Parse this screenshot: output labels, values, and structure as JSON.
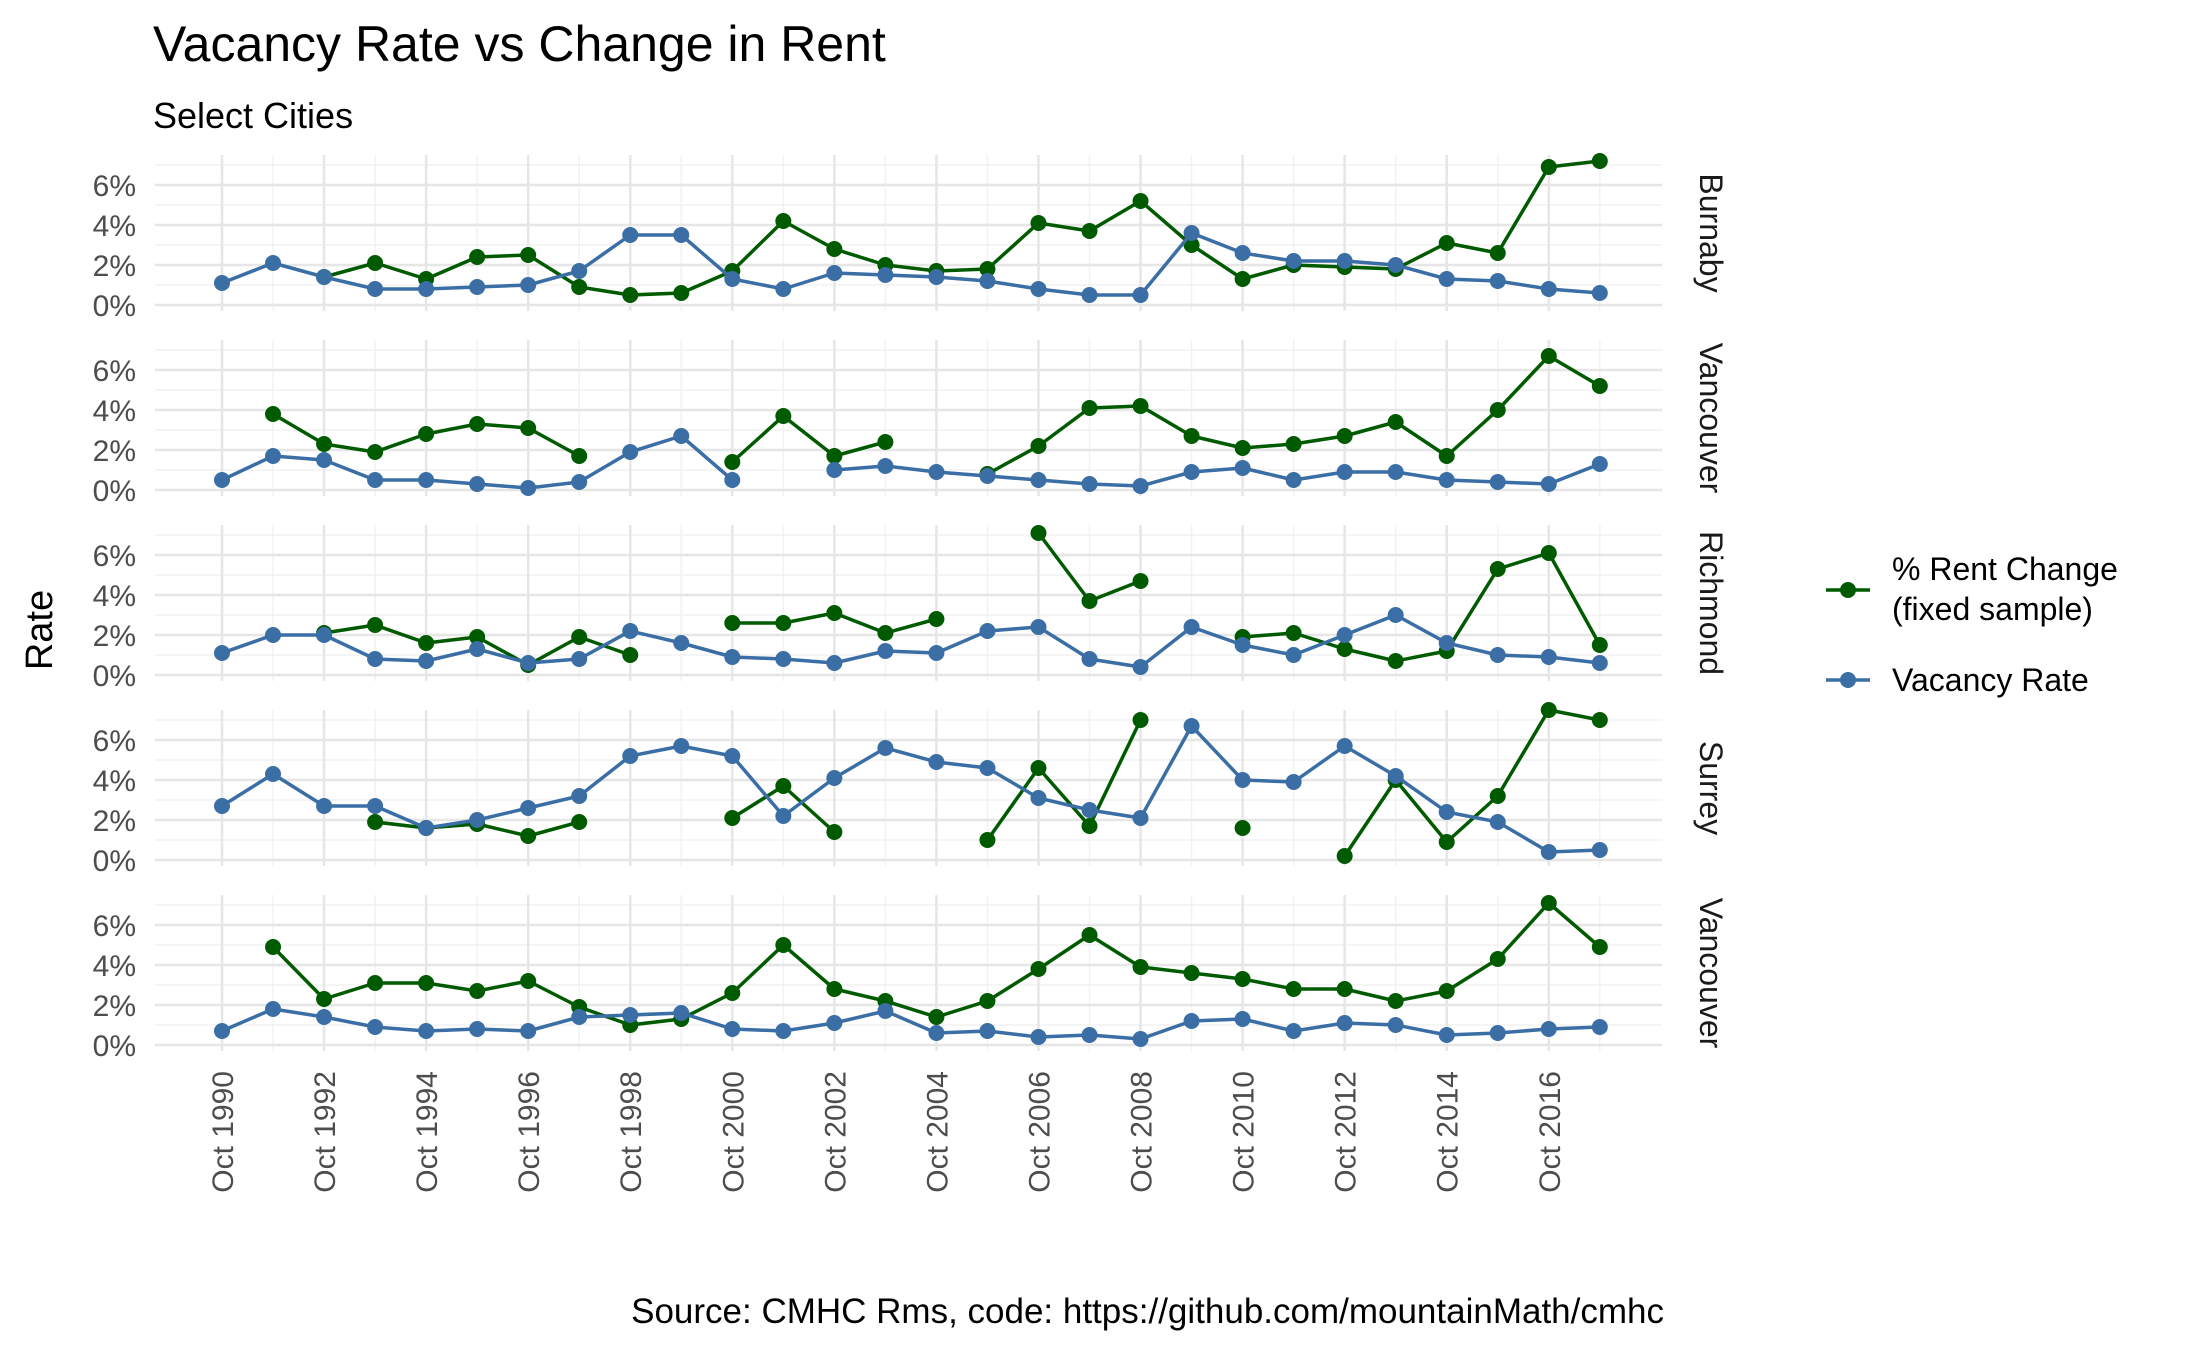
{
  "chart_data": {
    "type": "line",
    "title": "Vacancy Rate vs Change in Rent",
    "subtitle": "Select Cities",
    "ylabel": "Rate",
    "xlabel": "",
    "caption": "Source: CMHC Rms, code: https://github.com/mountainMath/cmhc",
    "ylim": [
      0,
      7.2
    ],
    "y_ticks": [
      "0%",
      "2%",
      "4%",
      "6%"
    ],
    "y_tick_values": [
      0,
      2,
      4,
      6
    ],
    "x": [
      "Oct 1990",
      "Oct 1991",
      "Oct 1992",
      "Oct 1993",
      "Oct 1994",
      "Oct 1995",
      "Oct 1996",
      "Oct 1997",
      "Oct 1998",
      "Oct 1999",
      "Oct 2000",
      "Oct 2001",
      "Oct 2002",
      "Oct 2003",
      "Oct 2004",
      "Oct 2005",
      "Oct 2006",
      "Oct 2007",
      "Oct 2008",
      "Oct 2009",
      "Oct 2010",
      "Oct 2011",
      "Oct 2012",
      "Oct 2013",
      "Oct 2014",
      "Oct 2015",
      "Oct 2016",
      "Oct 2017"
    ],
    "x_tick_labels": [
      "Oct 1990",
      "Oct 1992",
      "Oct 1994",
      "Oct 1996",
      "Oct 1998",
      "Oct 2000",
      "Oct 2002",
      "Oct 2004",
      "Oct 2006",
      "Oct 2008",
      "Oct 2010",
      "Oct 2012",
      "Oct 2014",
      "Oct 2016"
    ],
    "grid": true,
    "legend_position": "right",
    "colors": {
      "rent_change": "#005a00",
      "vacancy": "#3a6ea5",
      "grid_major": "#e6e6e6",
      "grid_minor": "#f2f2f2"
    },
    "legend": [
      {
        "label_line1": "% Rent Change",
        "label_line2": "(fixed sample)"
      },
      {
        "label_line1": "Vacancy Rate",
        "label_line2": ""
      }
    ],
    "panels": [
      {
        "strip": "Burnaby",
        "series": [
          {
            "name": "% Rent Change (fixed sample)",
            "values": [
              null,
              null,
              1.4,
              2.1,
              1.3,
              2.4,
              2.5,
              0.9,
              0.5,
              0.6,
              1.7,
              4.2,
              2.8,
              2.0,
              1.7,
              1.8,
              4.1,
              3.7,
              5.2,
              3.0,
              1.3,
              2.0,
              1.9,
              1.8,
              3.1,
              2.6,
              6.9,
              7.2
            ]
          },
          {
            "name": "Vacancy Rate",
            "values": [
              1.1,
              2.1,
              1.4,
              0.8,
              0.8,
              0.9,
              1.0,
              1.7,
              3.5,
              3.5,
              1.3,
              0.8,
              1.6,
              1.5,
              1.4,
              1.2,
              0.8,
              0.5,
              0.5,
              3.6,
              2.6,
              2.2,
              2.2,
              2.0,
              1.3,
              1.2,
              0.8,
              0.6
            ]
          }
        ]
      },
      {
        "strip": "Vancouver",
        "series": [
          {
            "name": "% Rent Change (fixed sample)",
            "values": [
              null,
              3.8,
              2.3,
              1.9,
              2.8,
              3.3,
              3.1,
              1.7,
              null,
              null,
              1.4,
              3.7,
              1.7,
              2.4,
              null,
              0.8,
              2.2,
              4.1,
              4.2,
              2.7,
              2.1,
              2.3,
              2.7,
              3.4,
              1.7,
              4.0,
              6.7,
              5.2
            ]
          },
          {
            "name": "Vacancy Rate",
            "values": [
              0.5,
              1.7,
              1.5,
              0.5,
              0.5,
              0.3,
              0.1,
              0.4,
              1.9,
              2.7,
              0.5,
              null,
              1.0,
              1.2,
              0.9,
              0.7,
              0.5,
              0.3,
              0.2,
              0.9,
              1.1,
              0.5,
              0.9,
              0.9,
              0.5,
              0.4,
              0.3,
              1.3
            ]
          }
        ]
      },
      {
        "strip": "Richmond",
        "series": [
          {
            "name": "% Rent Change (fixed sample)",
            "values": [
              null,
              null,
              2.1,
              2.5,
              1.6,
              1.9,
              0.5,
              1.9,
              1.0,
              null,
              2.6,
              2.6,
              3.1,
              2.1,
              2.8,
              null,
              7.1,
              3.7,
              4.7,
              null,
              1.9,
              2.1,
              1.3,
              0.7,
              1.2,
              5.3,
              6.1,
              1.5
            ]
          },
          {
            "name": "Vacancy Rate",
            "values": [
              1.1,
              2.0,
              2.0,
              0.8,
              0.7,
              1.3,
              0.6,
              0.8,
              2.2,
              1.6,
              0.9,
              0.8,
              0.6,
              1.2,
              1.1,
              2.2,
              2.4,
              0.8,
              0.4,
              2.4,
              1.5,
              1.0,
              2.0,
              3.0,
              1.6,
              1.0,
              0.9,
              0.6
            ]
          }
        ]
      },
      {
        "strip": "Surrey",
        "series": [
          {
            "name": "% Rent Change (fixed sample)",
            "values": [
              null,
              null,
              null,
              1.9,
              1.6,
              1.8,
              1.2,
              1.9,
              null,
              null,
              2.1,
              3.7,
              1.4,
              null,
              null,
              1.0,
              4.6,
              1.7,
              7.0,
              null,
              1.6,
              null,
              0.2,
              4.0,
              0.9,
              3.2,
              7.5,
              7.0
            ]
          },
          {
            "name": "Vacancy Rate",
            "values": [
              2.7,
              4.3,
              2.7,
              2.7,
              1.6,
              2.0,
              2.6,
              3.2,
              5.2,
              5.7,
              5.2,
              2.2,
              4.1,
              5.6,
              4.9,
              4.6,
              3.1,
              2.5,
              2.1,
              6.7,
              4.0,
              3.9,
              5.7,
              4.2,
              2.4,
              1.9,
              0.4,
              0.5
            ]
          }
        ]
      },
      {
        "strip": "Vancouver",
        "series": [
          {
            "name": "% Rent Change (fixed sample)",
            "values": [
              null,
              4.9,
              2.3,
              3.1,
              3.1,
              2.7,
              3.2,
              1.9,
              1.0,
              1.3,
              2.6,
              5.0,
              2.8,
              2.2,
              1.4,
              2.2,
              3.8,
              5.5,
              3.9,
              3.6,
              3.3,
              2.8,
              2.8,
              2.2,
              2.7,
              4.3,
              7.1,
              4.9
            ]
          },
          {
            "name": "Vacancy Rate",
            "values": [
              0.7,
              1.8,
              1.4,
              0.9,
              0.7,
              0.8,
              0.7,
              1.4,
              1.5,
              1.6,
              0.8,
              0.7,
              1.1,
              1.7,
              0.6,
              0.7,
              0.4,
              0.5,
              0.3,
              1.2,
              1.3,
              0.7,
              1.1,
              1.0,
              0.5,
              0.6,
              0.8,
              0.9
            ]
          }
        ]
      }
    ]
  }
}
